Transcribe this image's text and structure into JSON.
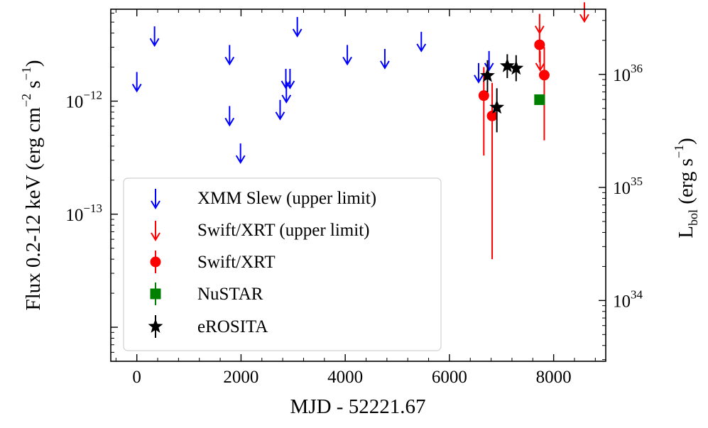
{
  "chart_data": {
    "type": "scatter",
    "x_label": "MJD - 52221.67",
    "y_label_left": "Flux 0.2-12 keV (erg cm^-2 s^-1)",
    "y_label_right": "L_bol (erg s^-1)",
    "y_label_left_parts": {
      "main": "Flux 0.2-12 keV (erg cm",
      "sup1": "−2",
      "mid": " s",
      "sup2": "−1",
      "end": ")"
    },
    "y_label_right_parts": {
      "main": "L",
      "sub": "bol",
      "mid": " (erg s",
      "sup": "−1",
      "end": ")"
    },
    "xlim": [
      -500,
      9000
    ],
    "ylim_flux": [
      5e-15,
      6.5e-12
    ],
    "lum_per_flux": 5.8e+47,
    "x_ticks": [
      0,
      2000,
      4000,
      6000,
      8000
    ],
    "x_tick_labels": [
      "0",
      "2000",
      "4000",
      "6000",
      "8000"
    ],
    "y_left_ticks": [
      {
        "value": 1e-12,
        "base": "10",
        "exp": "−12"
      },
      {
        "value": 1e-13,
        "base": "10",
        "exp": "−13"
      }
    ],
    "y_right_ticks": [
      {
        "value": 1e+36,
        "base": "10",
        "exp": "36"
      },
      {
        "value": 1e+35,
        "base": "10",
        "exp": "35"
      },
      {
        "value": 1e+34,
        "base": "10",
        "exp": "34"
      }
    ],
    "series": [
      {
        "name": "XMM Slew (upper limit)",
        "marker": "arrow",
        "color": "#0000ff",
        "upper_limits": [
          {
            "x": 0,
            "y": 1.5e-12
          },
          {
            "x": 340,
            "y": 3.8e-12
          },
          {
            "x": 1780,
            "y": 2.6e-12
          },
          {
            "x": 1780,
            "y": 7.5e-13
          },
          {
            "x": 1990,
            "y": 3.5e-13
          },
          {
            "x": 2750,
            "y": 8.5e-13
          },
          {
            "x": 2860,
            "y": 1.6e-12
          },
          {
            "x": 2870,
            "y": 1.2e-12
          },
          {
            "x": 2940,
            "y": 1.6e-12
          },
          {
            "x": 3080,
            "y": 4.6e-12
          },
          {
            "x": 4040,
            "y": 2.6e-12
          },
          {
            "x": 4760,
            "y": 2.4e-12
          },
          {
            "x": 5460,
            "y": 3.4e-12
          },
          {
            "x": 6560,
            "y": 1.8e-12
          },
          {
            "x": 6760,
            "y": 2.3e-12
          }
        ]
      },
      {
        "name": "Swift/XRT (upper limit)",
        "marker": "arrow",
        "color": "#ff0000",
        "upper_limits": [
          {
            "x": 7730,
            "y": 4.9e-12
          },
          {
            "x": 7740,
            "y": 2.3e-12
          },
          {
            "x": 8590,
            "y": 6.2e-12
          }
        ]
      },
      {
        "name": "Swift/XRT",
        "marker": "circle",
        "color": "#ff0000",
        "points": [
          {
            "x": 6660,
            "y": 1.12e-12,
            "ylo": 3.3e-13,
            "yhi": 2e-12
          },
          {
            "x": 6820,
            "y": 7.4e-13,
            "ylo": 4e-14,
            "yhi": 1.45e-12
          },
          {
            "x": 7730,
            "y": 3.15e-12,
            "ylo": 2.2e-12,
            "yhi": 4.5e-12
          },
          {
            "x": 7820,
            "y": 1.7e-12,
            "ylo": 4.5e-13,
            "yhi": 3e-12
          }
        ]
      },
      {
        "name": "NuSTAR",
        "marker": "square",
        "color": "#008000",
        "points": [
          {
            "x": 7730,
            "y": 1.03e-12,
            "ylo": 9.5e-13,
            "yhi": 1.11e-12
          }
        ]
      },
      {
        "name": "eROSITA",
        "marker": "star",
        "color": "#000000",
        "points": [
          {
            "x": 6730,
            "y": 1.68e-12,
            "ylo": 1.2e-12,
            "yhi": 2.3e-12
          },
          {
            "x": 6910,
            "y": 8.8e-13,
            "ylo": 5.3e-13,
            "yhi": 1.3e-12
          },
          {
            "x": 7110,
            "y": 2.05e-12,
            "ylo": 1.6e-12,
            "yhi": 2.6e-12
          },
          {
            "x": 7280,
            "y": 1.95e-12,
            "ylo": 1.5e-12,
            "yhi": 2.55e-12
          }
        ]
      }
    ],
    "legend_position": "lower-left"
  }
}
